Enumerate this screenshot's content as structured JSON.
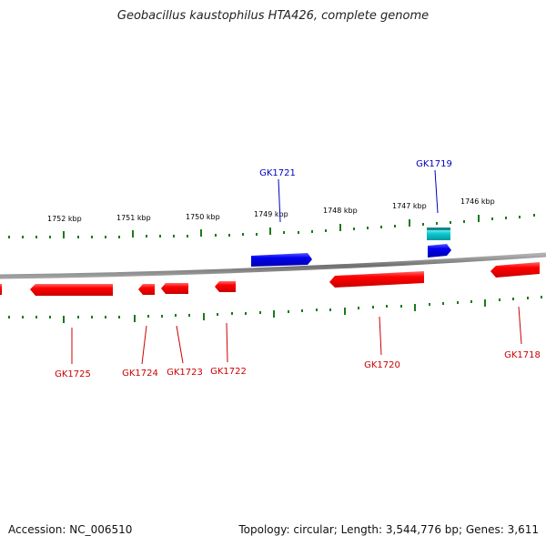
{
  "title": "Geobacillus kaustophilus HTA426, complete genome",
  "footer": {
    "accession": "Accession: NC_006510",
    "summary": "Topology: circular; Length: 3,544,776 bp; Genes: 3,611"
  },
  "scale_labels": [
    "1752 kbp",
    "1751 kbp",
    "1750 kbp",
    "1749 kbp",
    "1748 kbp",
    "1747 kbp",
    "1746 kbp"
  ],
  "genes_forward": [
    {
      "label": "GK1721",
      "color": "#0000e0"
    },
    {
      "label": "GK1719",
      "color": "#0000e0"
    }
  ],
  "genes_reverse": [
    {
      "label": "GK1725",
      "color": "#e00000"
    },
    {
      "label": "GK1724",
      "color": "#e00000"
    },
    {
      "label": "GK1723",
      "color": "#e00000"
    },
    {
      "label": "GK1722",
      "color": "#e00000"
    },
    {
      "label": "GK1720",
      "color": "#e00000"
    },
    {
      "label": "GK1718",
      "color": "#e00000"
    }
  ],
  "colors": {
    "forward": "#0000e0",
    "reverse": "#e00000",
    "other": "#00b8c0",
    "ticks": "#1a7a1a",
    "backbone": "#808080"
  }
}
